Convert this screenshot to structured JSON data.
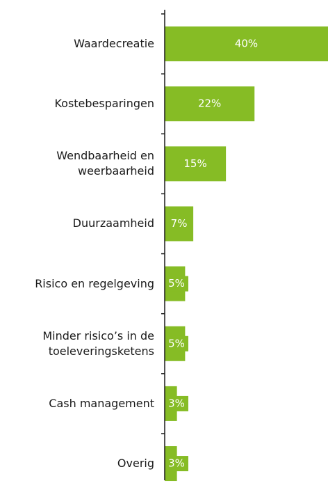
{
  "chart_data": {
    "type": "bar",
    "orientation": "horizontal",
    "categories": [
      "Waardecreatie",
      "Kostebesparingen",
      "Wendbaarheid en\nweerbaarheid",
      "Duurzaamheid",
      "Risico en regelgeving",
      "Minder risico’s in de\ntoeleveringsketens",
      "Cash management",
      "Overig"
    ],
    "values": [
      40,
      22,
      15,
      7,
      5,
      5,
      3,
      3
    ],
    "value_labels": [
      "40%",
      "22%",
      "15%",
      "7%",
      "5%",
      "5%",
      "3%",
      "3%"
    ],
    "color": "#86bc25",
    "xlim": [
      0,
      40
    ]
  }
}
